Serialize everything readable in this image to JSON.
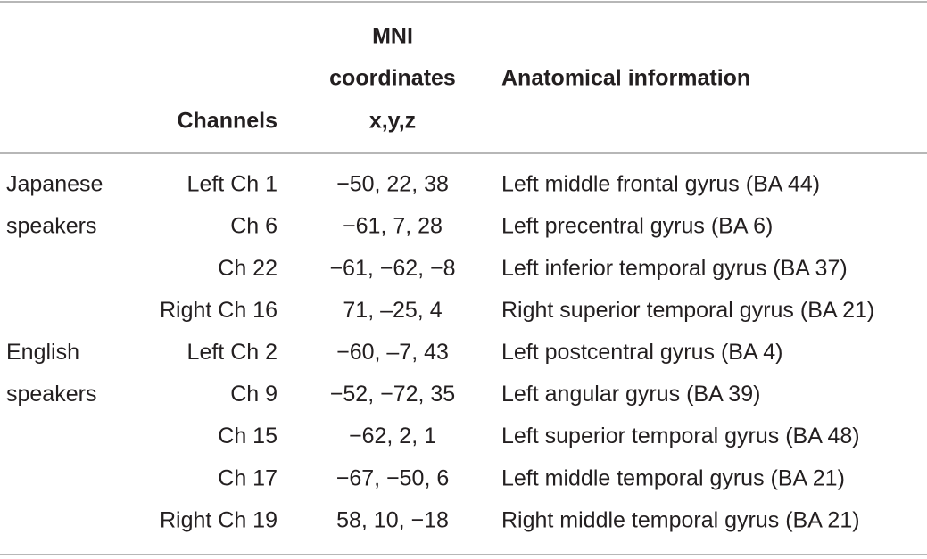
{
  "table": {
    "header": {
      "channels": "Channels",
      "coordinates": [
        "MNI",
        "coordinates",
        "x,y,z"
      ],
      "anatomical": "Anatomical information"
    },
    "rows": [
      {
        "group": "Japanese",
        "channel": "Left Ch 1",
        "coordinates": "−50, 22, 38",
        "region": "Left middle frontal gyrus (BA 44)"
      },
      {
        "group": "speakers",
        "channel": "Ch 6",
        "coordinates": "−61, 7, 28",
        "region": "Left precentral gyrus (BA 6)"
      },
      {
        "channel": "Ch 22",
        "coordinates": "−61, −62, −8",
        "region": "Left inferior temporal gyrus (BA 37)"
      },
      {
        "channel": "Right Ch 16",
        "coordinates": "71, –25, 4",
        "region": "Right superior temporal gyrus (BA 21)"
      },
      {
        "group": "English",
        "channel": "Left Ch 2",
        "coordinates": "−60, –7, 43",
        "region": "Left postcentral gyrus (BA 4)"
      },
      {
        "group": "speakers",
        "channel": "Ch 9",
        "coordinates": "−52, −72, 35",
        "region": "Left angular gyrus (BA 39)"
      },
      {
        "channel": "Ch 15",
        "coordinates": "−62, 2, 1",
        "region": "Left superior temporal gyrus (BA 48)"
      },
      {
        "channel": "Ch 17",
        "coordinates": "−67, −50, 6",
        "region": "Left middle temporal gyrus (BA 21)"
      },
      {
        "channel": "Right Ch 19",
        "coordinates": "58, 10, −18",
        "region": "Right middle temporal gyrus (BA 21)"
      }
    ]
  }
}
